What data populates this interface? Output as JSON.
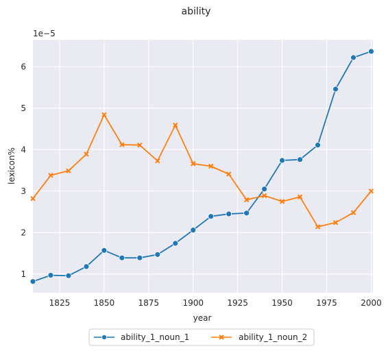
{
  "chart_data": {
    "type": "line",
    "title": "ability",
    "xlabel": "year",
    "ylabel": "lexicon%",
    "y_scale_label": "1e−5",
    "xlim": [
      1810,
      2001
    ],
    "ylim": [
      0.55,
      6.65
    ],
    "xticks": [
      1825,
      1850,
      1875,
      1900,
      1925,
      1950,
      1975,
      2000
    ],
    "yticks": [
      1,
      2,
      3,
      4,
      5,
      6
    ],
    "grid": true,
    "legend_position": "bottom-center",
    "x": [
      1810,
      1820,
      1830,
      1840,
      1850,
      1860,
      1870,
      1880,
      1890,
      1900,
      1910,
      1920,
      1930,
      1940,
      1950,
      1960,
      1970,
      1980,
      1990,
      2000
    ],
    "series": [
      {
        "name": "ability_1_noun_1",
        "color": "#1f77b4",
        "marker": "circle",
        "values": [
          0.82,
          0.97,
          0.96,
          1.18,
          1.57,
          1.39,
          1.39,
          1.47,
          1.74,
          2.06,
          2.39,
          2.45,
          2.47,
          3.05,
          3.74,
          3.76,
          4.11,
          5.46,
          6.22,
          6.37
        ]
      },
      {
        "name": "ability_1_noun_2",
        "color": "#ff7f0e",
        "marker": "x",
        "values": [
          2.82,
          3.38,
          3.49,
          3.89,
          4.84,
          4.12,
          4.11,
          3.73,
          4.59,
          3.66,
          3.6,
          3.41,
          2.79,
          2.89,
          2.75,
          2.86,
          2.14,
          2.24,
          2.48,
          3.0
        ]
      }
    ]
  }
}
